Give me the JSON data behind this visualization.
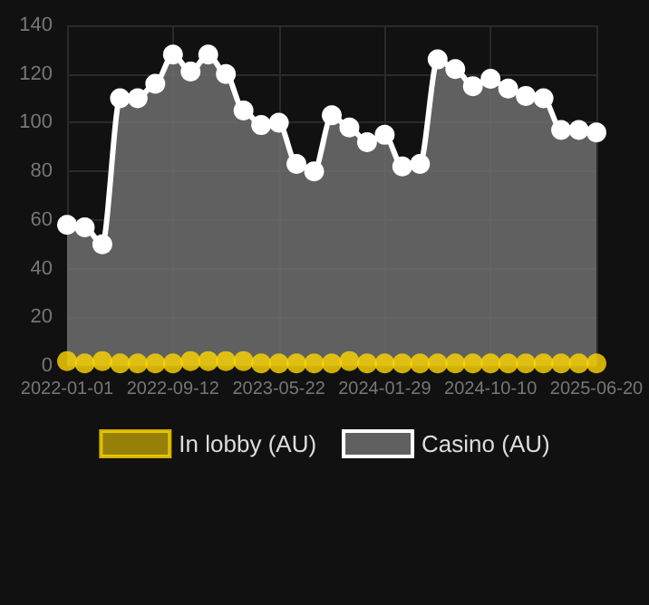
{
  "chart_data": {
    "type": "area",
    "categories": [
      "2022-01-01",
      null,
      null,
      null,
      null,
      null,
      "2022-09-12",
      null,
      null,
      null,
      null,
      null,
      "2023-05-22",
      null,
      null,
      null,
      null,
      null,
      "2024-01-29",
      null,
      null,
      null,
      null,
      null,
      "2024-10-10",
      null,
      null,
      null,
      null,
      null,
      "2025-06-20"
    ],
    "series": [
      {
        "name": "In lobby (AU)",
        "type": "scatter",
        "color": "#ffd700",
        "values": [
          2,
          1,
          2,
          1,
          1,
          1,
          1,
          2,
          2,
          2,
          2,
          1,
          1,
          1,
          1,
          1,
          2,
          1,
          1,
          1,
          1,
          1,
          1,
          1,
          1,
          1,
          1,
          1,
          1,
          1,
          1
        ]
      },
      {
        "name": "Casino (AU)",
        "color": "#ffffff",
        "values": [
          58,
          57,
          50,
          110,
          110,
          116,
          128,
          121,
          128,
          120,
          105,
          99,
          100,
          83,
          80,
          103,
          98,
          92,
          95,
          82,
          83,
          126,
          122,
          115,
          118,
          114,
          111,
          110,
          97,
          97,
          96
        ]
      }
    ],
    "ylim": [
      0,
      140
    ],
    "yticks": [
      0,
      20,
      40,
      60,
      80,
      100,
      120,
      140
    ],
    "grid": true,
    "legend": "bottom",
    "marker": "circle"
  }
}
